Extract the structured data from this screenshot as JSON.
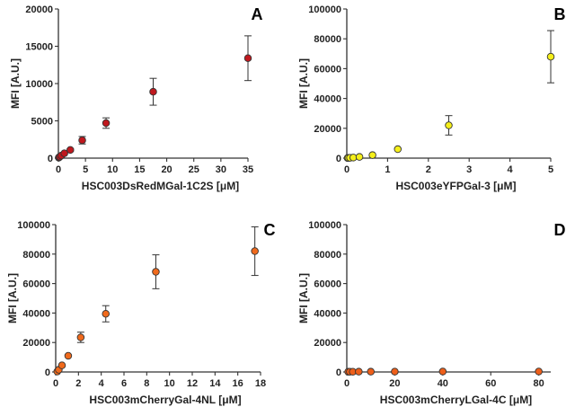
{
  "colors": {
    "A": "#c0181e",
    "B": "#f5ef1a",
    "C": "#f06a1c",
    "D": "#ee5f1a"
  },
  "chart_data": [
    {
      "type": "scatter",
      "letter": "A",
      "color_key": "A",
      "xlabel": "HSC003DsRedMGal-1C2S [μM]",
      "ylabel": "MFI [A.U.]",
      "xlim": [
        0,
        35
      ],
      "ylim": [
        0,
        20000
      ],
      "xticks": [
        0,
        5,
        10,
        15,
        20,
        25,
        30,
        35
      ],
      "yticks": [
        0,
        5000,
        10000,
        15000,
        20000
      ],
      "xtick_labels": [
        "0",
        "5",
        "10",
        "15",
        "20",
        "25",
        "30",
        "35"
      ],
      "ytick_labels": [
        "0",
        "5000",
        "10000",
        "15000",
        "20000"
      ],
      "points": [
        {
          "x": 0.07,
          "y": 60,
          "err": 0
        },
        {
          "x": 0.14,
          "y": 120,
          "err": 0
        },
        {
          "x": 0.27,
          "y": 200,
          "err": 0
        },
        {
          "x": 0.55,
          "y": 350,
          "err": 0
        },
        {
          "x": 1.1,
          "y": 650,
          "err": 0
        },
        {
          "x": 2.2,
          "y": 1100,
          "err": 150
        },
        {
          "x": 4.4,
          "y": 2400,
          "err": 500
        },
        {
          "x": 8.8,
          "y": 4700,
          "err": 700
        },
        {
          "x": 17.5,
          "y": 8900,
          "err": 1800
        },
        {
          "x": 35,
          "y": 13400,
          "err": 3000
        }
      ]
    },
    {
      "type": "scatter",
      "letter": "B",
      "color_key": "B",
      "xlabel": "HSC003eYFPGal-3 [μM]",
      "ylabel": "MFI [A.U.]",
      "xlim": [
        0,
        5
      ],
      "ylim": [
        0,
        100000
      ],
      "xticks": [
        0,
        1,
        2,
        3,
        4,
        5
      ],
      "yticks": [
        0,
        20000,
        40000,
        60000,
        80000,
        100000
      ],
      "xtick_labels": [
        "0",
        "1",
        "2",
        "3",
        "4",
        "5"
      ],
      "ytick_labels": [
        "0",
        "20000",
        "40000",
        "60000",
        "80000",
        "100000"
      ],
      "points": [
        {
          "x": 0.02,
          "y": 100,
          "err": 0
        },
        {
          "x": 0.04,
          "y": 150,
          "err": 0
        },
        {
          "x": 0.08,
          "y": 250,
          "err": 0
        },
        {
          "x": 0.16,
          "y": 400,
          "err": 0
        },
        {
          "x": 0.31,
          "y": 800,
          "err": 0
        },
        {
          "x": 0.63,
          "y": 2000,
          "err": 0
        },
        {
          "x": 1.25,
          "y": 6000,
          "err": 0
        },
        {
          "x": 2.5,
          "y": 22000,
          "err": 6500
        },
        {
          "x": 5,
          "y": 68000,
          "err": 17500
        }
      ]
    },
    {
      "type": "scatter",
      "letter": "C",
      "color_key": "C",
      "xlabel": "HSC003mCherryGal-4NL [μM]",
      "ylabel": "MFI [A.U.]",
      "xlim": [
        0,
        18
      ],
      "ylim": [
        0,
        100000
      ],
      "xticks": [
        0,
        2,
        4,
        6,
        8,
        10,
        12,
        14,
        16,
        18
      ],
      "yticks": [
        0,
        20000,
        40000,
        60000,
        80000,
        100000
      ],
      "xtick_labels": [
        "0",
        "2",
        "4",
        "6",
        "8",
        "10",
        "12",
        "14",
        "16",
        "18"
      ],
      "ytick_labels": [
        "0",
        "20000",
        "40000",
        "60000",
        "80000",
        "100000"
      ],
      "points": [
        {
          "x": 0.14,
          "y": 300,
          "err": 0
        },
        {
          "x": 0.27,
          "y": 1500,
          "err": 0
        },
        {
          "x": 0.55,
          "y": 4500,
          "err": 0
        },
        {
          "x": 1.1,
          "y": 11000,
          "err": 0
        },
        {
          "x": 2.2,
          "y": 23500,
          "err": 3500
        },
        {
          "x": 4.4,
          "y": 39500,
          "err": 5500
        },
        {
          "x": 8.8,
          "y": 68000,
          "err": 11500
        },
        {
          "x": 17.5,
          "y": 82000,
          "err": 16500
        }
      ]
    },
    {
      "type": "scatter",
      "letter": "D",
      "color_key": "D",
      "xlabel": "HSC003mCherryLGal-4C [μM]",
      "ylabel": "MFI [A.U.]",
      "xlim": [
        0,
        85
      ],
      "ylim": [
        0,
        100000
      ],
      "xticks": [
        0,
        20,
        40,
        60,
        80
      ],
      "yticks": [
        0,
        20000,
        40000,
        60000,
        80000,
        100000
      ],
      "xtick_labels": [
        "0",
        "20",
        "40",
        "60",
        "80"
      ],
      "ytick_labels": [
        "0",
        "20000",
        "40000",
        "60000",
        "80000",
        "100000"
      ],
      "points": [
        {
          "x": 0.6,
          "y": 150,
          "err": 0
        },
        {
          "x": 1.25,
          "y": 150,
          "err": 0
        },
        {
          "x": 2.5,
          "y": 150,
          "err": 0
        },
        {
          "x": 5,
          "y": 200,
          "err": 0
        },
        {
          "x": 10,
          "y": 200,
          "err": 0
        },
        {
          "x": 20,
          "y": 250,
          "err": 0
        },
        {
          "x": 40,
          "y": 300,
          "err": 0
        },
        {
          "x": 80,
          "y": 300,
          "err": 0
        }
      ]
    }
  ]
}
